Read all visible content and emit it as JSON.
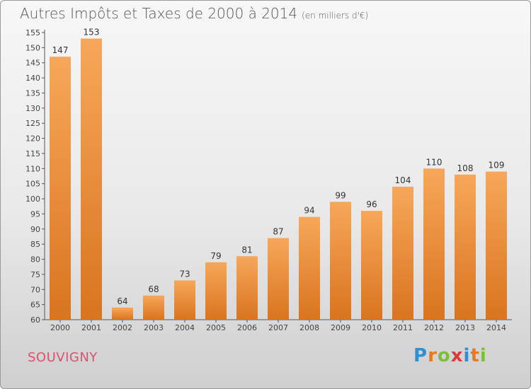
{
  "title": "Autres Impôts et Taxes de 2000 à 2014",
  "subtitle": "(en milliers d'€)",
  "commune": "SOUVIGNY",
  "logo": {
    "text": "Proxiti",
    "colors": [
      "#2f8fd5",
      "#e87a1e",
      "#7cbf3a",
      "#d93a3a",
      "#2f8fd5",
      "#e87a1e",
      "#7cbf3a"
    ]
  },
  "chart_data": {
    "type": "bar",
    "title": "Autres Impôts et Taxes de 2000 à 2014",
    "categories": [
      "2000",
      "2001",
      "2002",
      "2003",
      "2004",
      "2005",
      "2006",
      "2007",
      "2008",
      "2009",
      "2010",
      "2011",
      "2012",
      "2013",
      "2014"
    ],
    "values": [
      147,
      153,
      64,
      68,
      73,
      79,
      81,
      87,
      94,
      99,
      96,
      104,
      110,
      108,
      109
    ],
    "ylim": [
      60,
      155
    ],
    "yticks": [
      60,
      65,
      70,
      75,
      80,
      85,
      90,
      95,
      100,
      105,
      110,
      115,
      120,
      125,
      130,
      135,
      140,
      145,
      150,
      155
    ],
    "grid": false,
    "bar_color_top": "#f7a75a",
    "bar_color_bottom": "#d9741f",
    "xlabel": "",
    "ylabel": ""
  }
}
